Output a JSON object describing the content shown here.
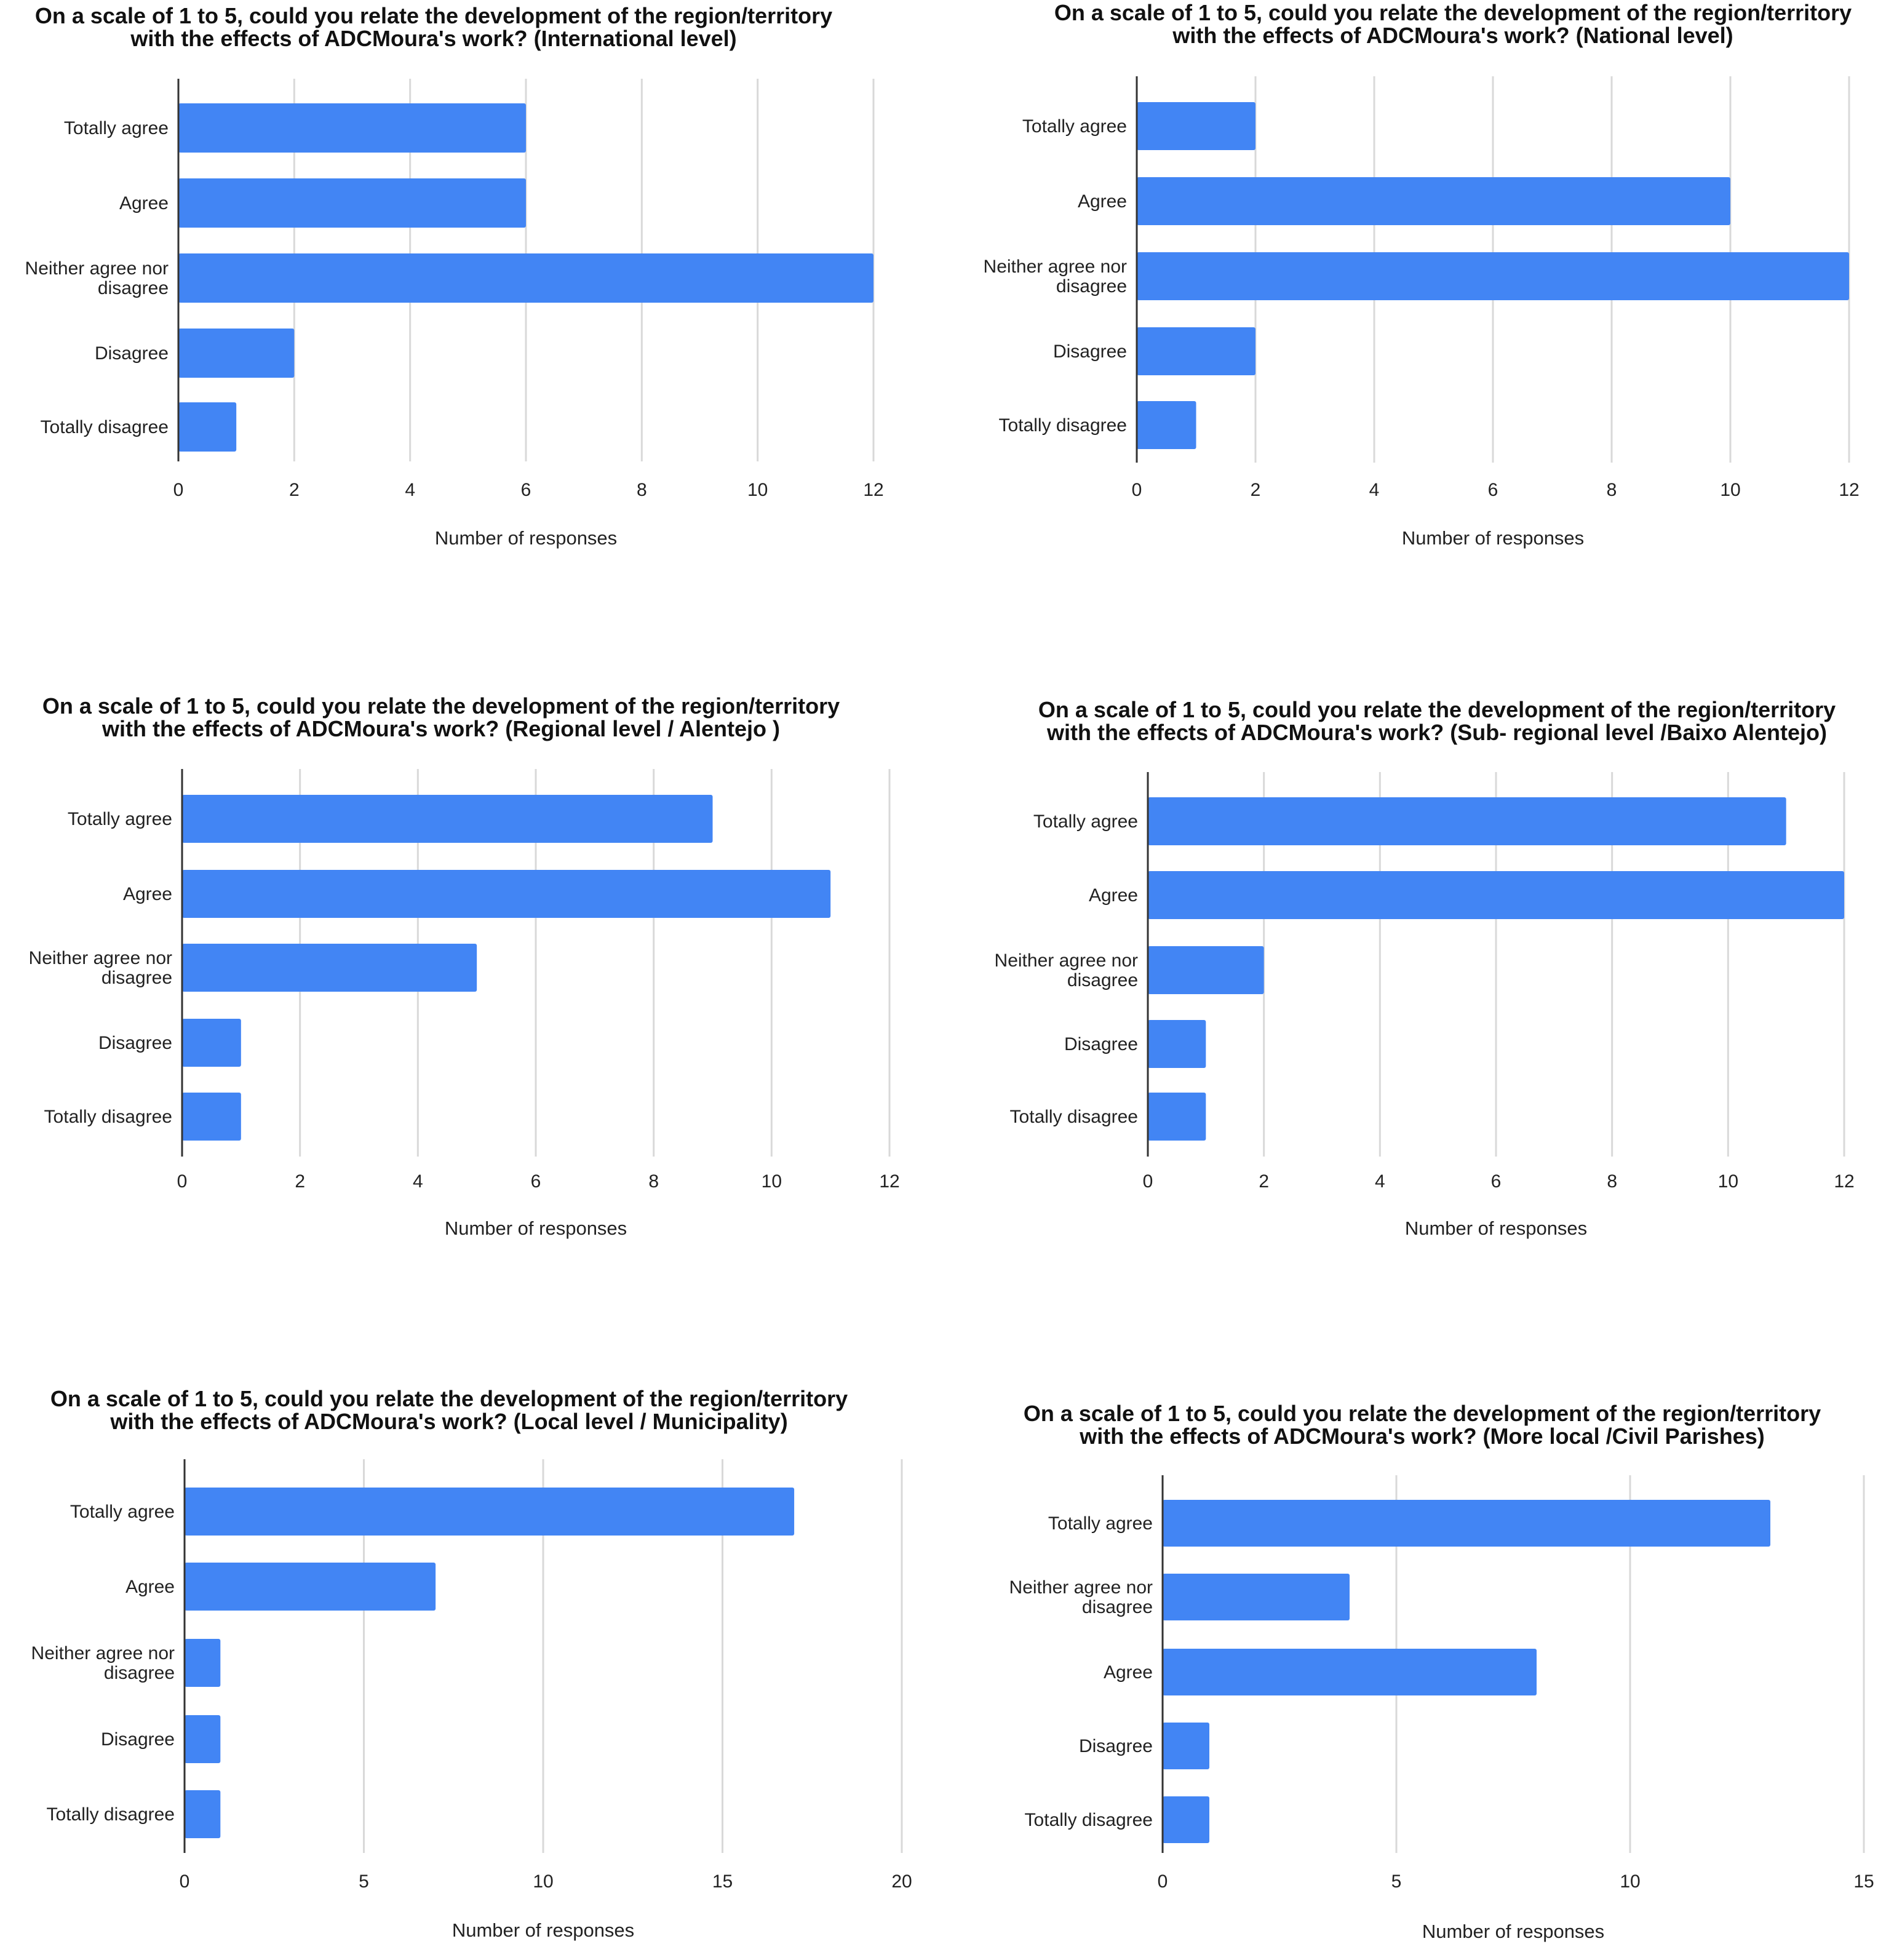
{
  "theme": {
    "bar_color": "#4285f4"
  },
  "chart_data": [
    {
      "type": "bar",
      "orientation": "horizontal",
      "title": [
        "On a scale of 1 to 5, could you relate the development of the region/territory",
        "with the effects of ADCMoura's work? (International level)"
      ],
      "categories": [
        "Totally agree",
        "Agree",
        "Neither agree nor disagree",
        "Disagree",
        "Totally disagree"
      ],
      "category_lines": [
        [
          "Totally agree"
        ],
        [
          "Agree"
        ],
        [
          "Neither agree nor",
          "disagree"
        ],
        [
          "Disagree"
        ],
        [
          "Totally disagree"
        ]
      ],
      "values": [
        6,
        6,
        12,
        2,
        1
      ],
      "xlim": [
        0,
        12
      ],
      "xticks": [
        0,
        2,
        4,
        6,
        8,
        10,
        12
      ],
      "xlabel": "Number of responses",
      "ylabel": ""
    },
    {
      "type": "bar",
      "orientation": "horizontal",
      "title": [
        "On a scale of 1 to 5, could you relate the development of the region/territory",
        "with the effects of ADCMoura's work? (National level)"
      ],
      "categories": [
        "Totally agree",
        "Agree",
        "Neither agree nor disagree",
        "Disagree",
        "Totally disagree"
      ],
      "category_lines": [
        [
          "Totally agree"
        ],
        [
          "Agree"
        ],
        [
          "Neither agree nor",
          "disagree"
        ],
        [
          "Disagree"
        ],
        [
          "Totally disagree"
        ]
      ],
      "values": [
        2,
        10,
        12,
        2,
        1
      ],
      "xlim": [
        0,
        12
      ],
      "xticks": [
        0,
        2,
        4,
        6,
        8,
        10,
        12
      ],
      "xlabel": "Number of responses",
      "ylabel": ""
    },
    {
      "type": "bar",
      "orientation": "horizontal",
      "title": [
        "On a scale of 1 to 5, could you relate the development of the region/territory",
        "with the effects of ADCMoura's work? (Regional level / Alentejo )"
      ],
      "categories": [
        "Totally agree",
        "Agree",
        "Neither agree nor disagree",
        "Disagree",
        "Totally disagree"
      ],
      "category_lines": [
        [
          "Totally agree"
        ],
        [
          "Agree"
        ],
        [
          "Neither agree nor",
          "disagree"
        ],
        [
          "Disagree"
        ],
        [
          "Totally disagree"
        ]
      ],
      "values": [
        9,
        11,
        5,
        1,
        1
      ],
      "xlim": [
        0,
        12
      ],
      "xticks": [
        0,
        2,
        4,
        6,
        8,
        10,
        12
      ],
      "xlabel": "Number of responses",
      "ylabel": ""
    },
    {
      "type": "bar",
      "orientation": "horizontal",
      "title": [
        "On a scale of 1 to 5, could you relate the development of the region/territory",
        "with the effects of ADCMoura's work? (Sub- regional level /Baixo Alentejo)"
      ],
      "categories": [
        "Totally agree",
        "Agree",
        "Neither agree nor disagree",
        "Disagree",
        "Totally disagree"
      ],
      "category_lines": [
        [
          "Totally agree"
        ],
        [
          "Agree"
        ],
        [
          "Neither agree nor",
          "disagree"
        ],
        [
          "Disagree"
        ],
        [
          "Totally disagree"
        ]
      ],
      "values": [
        11,
        12,
        2,
        1,
        1
      ],
      "xlim": [
        0,
        12
      ],
      "xticks": [
        0,
        2,
        4,
        6,
        8,
        10,
        12
      ],
      "xlabel": "Number of responses",
      "ylabel": ""
    },
    {
      "type": "bar",
      "orientation": "horizontal",
      "title": [
        "On a scale of 1 to 5, could you relate the development of the region/territory",
        "with the effects of ADCMoura's work? (Local level / Municipality)"
      ],
      "categories": [
        "Totally agree",
        "Agree",
        "Neither agree nor disagree",
        "Disagree",
        "Totally disagree"
      ],
      "category_lines": [
        [
          "Totally agree"
        ],
        [
          "Agree"
        ],
        [
          "Neither agree nor",
          "disagree"
        ],
        [
          "Disagree"
        ],
        [
          "Totally disagree"
        ]
      ],
      "values": [
        17,
        7,
        1,
        1,
        1
      ],
      "xlim": [
        0,
        20
      ],
      "xticks": [
        0,
        5,
        10,
        15,
        20
      ],
      "xlabel": "Number of responses",
      "ylabel": ""
    },
    {
      "type": "bar",
      "orientation": "horizontal",
      "title": [
        "On a scale of 1 to 5, could you relate the development of the region/territory",
        "with the effects of ADCMoura's work? (More local /Civil Parishes)"
      ],
      "categories": [
        "Totally agree",
        "Neither agree nor disagree",
        "Agree",
        "Disagree",
        "Totally disagree"
      ],
      "category_lines": [
        [
          "Totally agree"
        ],
        [
          "Neither agree nor",
          "disagree"
        ],
        [
          "Agree"
        ],
        [
          "Disagree"
        ],
        [
          "Totally disagree"
        ]
      ],
      "values": [
        13,
        4,
        8,
        1,
        1
      ],
      "xlim": [
        0,
        15
      ],
      "xticks": [
        0,
        5,
        10,
        15
      ],
      "xlabel": "Number of responses",
      "ylabel": ""
    }
  ]
}
